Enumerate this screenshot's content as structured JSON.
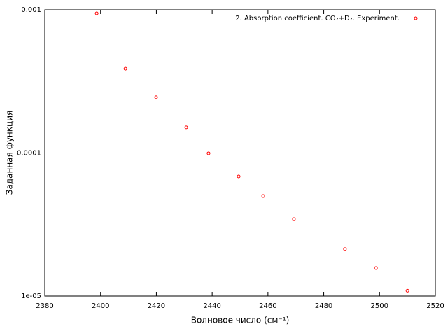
{
  "chart_data": {
    "type": "scatter",
    "log_y": true,
    "x_label": "Волновое число (см⁻¹)",
    "y_label": "Заданная функция",
    "series": [
      {
        "name": "2. Absorption coefficient. CO₂+D₂. Experiment.",
        "color": "#ff0000",
        "x": [
          2398.6,
          2408.9,
          2419.9,
          2430.7,
          2438.7,
          2449.5,
          2458.3,
          2469.3,
          2487.6,
          2498.7,
          2510.0
        ],
        "values": [
          0.000945,
          0.000388,
          0.000245,
          0.000151,
          9.95e-05,
          6.86e-05,
          5e-05,
          3.45e-05,
          2.13e-05,
          1.57e-05,
          1.09e-05
        ]
      }
    ],
    "xlim": [
      2380,
      2520
    ],
    "xticks": [
      2380,
      2400,
      2420,
      2440,
      2460,
      2480,
      2500,
      2520
    ],
    "ylim": [
      1e-05,
      0.001
    ],
    "yticks": [
      {
        "value": 1e-05,
        "label": "1e-05"
      },
      0.0001,
      0.001
    ],
    "legend": "top-right"
  }
}
